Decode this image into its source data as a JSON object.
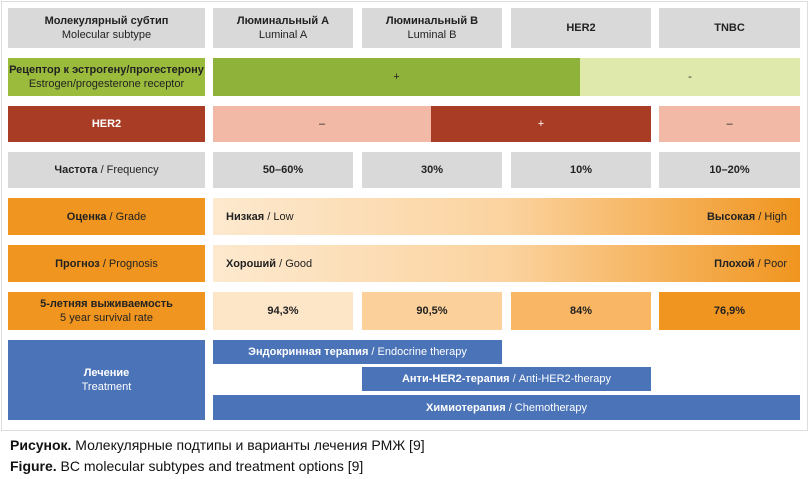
{
  "header": {
    "label": {
      "bold": "Молекулярный субтип",
      "rest": "Molecular subtype"
    },
    "columns": [
      {
        "bold": "Люминальный A",
        "rest": "Luminal A"
      },
      {
        "bold": "Люминальный B",
        "rest": "Luminal B"
      },
      {
        "bold": "HER2"
      },
      {
        "bold": "TNBC"
      }
    ]
  },
  "receptor": {
    "label": {
      "bold": "Рецептор к эстрогену/прогестерону",
      "rest": "Estrogen/progesterone receptor"
    },
    "cells": [
      "+",
      "-"
    ]
  },
  "her2": {
    "label": "HER2",
    "cells": [
      "–",
      "+",
      "–"
    ]
  },
  "frequency": {
    "label": {
      "bold": "Частота",
      "rest": " / Frequency"
    },
    "values": [
      "50–60%",
      "30%",
      "10%",
      "10–20%"
    ]
  },
  "grade": {
    "label": {
      "bold": "Оценка",
      "rest": " / Grade"
    },
    "low": {
      "bold": "Низкая",
      "rest": " / Low"
    },
    "high": {
      "bold": "Высокая",
      "rest": " / High"
    }
  },
  "prognosis": {
    "label": {
      "bold": "Прогноз",
      "rest": " / Prognosis"
    },
    "low": {
      "bold": "Хороший",
      "rest": " / Good"
    },
    "high": {
      "bold": "Плохой",
      "rest": " / Poor"
    }
  },
  "survival": {
    "label": {
      "bold": "5-летняя выживаемость",
      "rest": "5 year survival rate"
    },
    "values": [
      "94,3%",
      "90,5%",
      "84%",
      "76,9%"
    ]
  },
  "treatment": {
    "label": {
      "bold": "Лечение",
      "rest": "Treatment"
    },
    "bars": [
      {
        "bold": "Эндокринная терапия",
        "rest": " / Endocrine therapy"
      },
      {
        "bold": "Анти-HER2-терапия",
        "rest": " / Anti-HER2-therapy"
      },
      {
        "bold": "Химиотерапия",
        "rest": " / Chemotherapy"
      }
    ]
  },
  "caption": [
    {
      "bold": "Рисунок.",
      "rest": " Молекулярные подтипы и варианты лечения РМЖ [9]"
    },
    {
      "bold": "Figure.",
      "rest": " BC molecular subtypes and treatment options [9]"
    }
  ]
}
